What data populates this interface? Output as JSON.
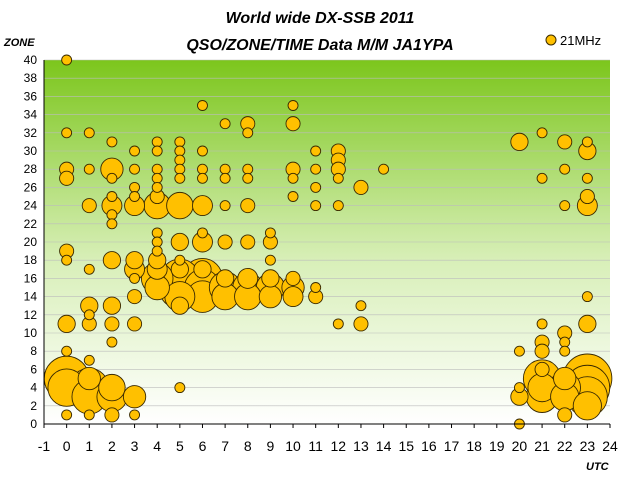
{
  "chart_data": {
    "type": "scatter",
    "title": "World wide DX-SSB 2011",
    "subtitle": "QSO/ZONE/TIME Data M/M JA1YPA",
    "xlabel": "UTC",
    "ylabel": "ZONE",
    "xlim": [
      -1,
      24
    ],
    "ylim": [
      0,
      40
    ],
    "x_ticks": [
      "-1",
      "0",
      "1",
      "2",
      "3",
      "4",
      "5",
      "6",
      "7",
      "8",
      "9",
      "10",
      "11",
      "12",
      "13",
      "14",
      "15",
      "16",
      "17",
      "18",
      "19",
      "20",
      "21",
      "22",
      "23",
      "24"
    ],
    "y_ticks": [
      "0",
      "2",
      "4",
      "6",
      "8",
      "10",
      "12",
      "14",
      "16",
      "18",
      "20",
      "22",
      "24",
      "26",
      "28",
      "30",
      "32",
      "34",
      "36",
      "38",
      "40"
    ],
    "legend_position": "top-right",
    "colors": {
      "marker_fill": "#FFC000",
      "marker_stroke": "#3a2a00",
      "plot_top": "#7cc61c",
      "plot_bottom": "#ffffff"
    },
    "series": [
      {
        "name": "21MHz",
        "points": [
          [
            0,
            40,
            1
          ],
          [
            0,
            32,
            1
          ],
          [
            0,
            28,
            2
          ],
          [
            0,
            27,
            2
          ],
          [
            0,
            19,
            2
          ],
          [
            0,
            18,
            1
          ],
          [
            0,
            11,
            3
          ],
          [
            0,
            8,
            1
          ],
          [
            0,
            5,
            20
          ],
          [
            0,
            4,
            14
          ],
          [
            0,
            1,
            1
          ],
          [
            1,
            32,
            1
          ],
          [
            1,
            28,
            1
          ],
          [
            1,
            24,
            2
          ],
          [
            1,
            17,
            1
          ],
          [
            1,
            13,
            3
          ],
          [
            1,
            12,
            1
          ],
          [
            1,
            11,
            2
          ],
          [
            1,
            7,
            1
          ],
          [
            1,
            5,
            5
          ],
          [
            1,
            4,
            15
          ],
          [
            1,
            3,
            12
          ],
          [
            1,
            1,
            1
          ],
          [
            2,
            31,
            1
          ],
          [
            2,
            28,
            5
          ],
          [
            2,
            27,
            1
          ],
          [
            2,
            25,
            1
          ],
          [
            2,
            24,
            4
          ],
          [
            2,
            23,
            1
          ],
          [
            2,
            22,
            1
          ],
          [
            2,
            18,
            3
          ],
          [
            2,
            13,
            3
          ],
          [
            2,
            11,
            2
          ],
          [
            2,
            9,
            1
          ],
          [
            2,
            4,
            7
          ],
          [
            2,
            3,
            9
          ],
          [
            2,
            1,
            2
          ],
          [
            3,
            30,
            1
          ],
          [
            3,
            28,
            1
          ],
          [
            3,
            26,
            1
          ],
          [
            3,
            25,
            1
          ],
          [
            3,
            24,
            4
          ],
          [
            3,
            18,
            3
          ],
          [
            3,
            17,
            4
          ],
          [
            3,
            16,
            1
          ],
          [
            3,
            14,
            2
          ],
          [
            3,
            11,
            2
          ],
          [
            3,
            3,
            5
          ],
          [
            3,
            1,
            1
          ],
          [
            4,
            31,
            1
          ],
          [
            4,
            30,
            1
          ],
          [
            4,
            28,
            1
          ],
          [
            4,
            27,
            1
          ],
          [
            4,
            26,
            1
          ],
          [
            4,
            25,
            2
          ],
          [
            4,
            24,
            7
          ],
          [
            4,
            21,
            1
          ],
          [
            4,
            20,
            1
          ],
          [
            4,
            19,
            1
          ],
          [
            4,
            18,
            3
          ],
          [
            4,
            17,
            4
          ],
          [
            4,
            16,
            10
          ],
          [
            4,
            15,
            6
          ],
          [
            5,
            31,
            1
          ],
          [
            5,
            30,
            1
          ],
          [
            5,
            29,
            1
          ],
          [
            5,
            28,
            1
          ],
          [
            5,
            27,
            1
          ],
          [
            5,
            24,
            7
          ],
          [
            5,
            20,
            3
          ],
          [
            5,
            18,
            1
          ],
          [
            5,
            17,
            3
          ],
          [
            5,
            16,
            15
          ],
          [
            5,
            15,
            18
          ],
          [
            5,
            14,
            9
          ],
          [
            5,
            13,
            3
          ],
          [
            5,
            4,
            1
          ],
          [
            6,
            35,
            1
          ],
          [
            6,
            30,
            1
          ],
          [
            6,
            28,
            1
          ],
          [
            6,
            27,
            1
          ],
          [
            6,
            24,
            4
          ],
          [
            6,
            21,
            1
          ],
          [
            6,
            20,
            4
          ],
          [
            6,
            17,
            3
          ],
          [
            6,
            16,
            16
          ],
          [
            6,
            15,
            13
          ],
          [
            6,
            14,
            10
          ],
          [
            7,
            33,
            1
          ],
          [
            7,
            28,
            1
          ],
          [
            7,
            27,
            1
          ],
          [
            7,
            24,
            1
          ],
          [
            7,
            20,
            2
          ],
          [
            7,
            16,
            3
          ],
          [
            7,
            15,
            10
          ],
          [
            7,
            14,
            7
          ],
          [
            8,
            33,
            2
          ],
          [
            8,
            32,
            1
          ],
          [
            8,
            28,
            1
          ],
          [
            8,
            27,
            1
          ],
          [
            8,
            24,
            2
          ],
          [
            8,
            20,
            2
          ],
          [
            8,
            16,
            4
          ],
          [
            8,
            15,
            9
          ],
          [
            8,
            14,
            7
          ],
          [
            9,
            21,
            1
          ],
          [
            9,
            20,
            2
          ],
          [
            9,
            18,
            1
          ],
          [
            9,
            16,
            3
          ],
          [
            9,
            15,
            8
          ],
          [
            9,
            14,
            5
          ],
          [
            10,
            35,
            1
          ],
          [
            10,
            33,
            2
          ],
          [
            10,
            28,
            2
          ],
          [
            10,
            27,
            1
          ],
          [
            10,
            25,
            1
          ],
          [
            10,
            16,
            2
          ],
          [
            10,
            15,
            5
          ],
          [
            10,
            14,
            4
          ],
          [
            11,
            30,
            1
          ],
          [
            11,
            28,
            1
          ],
          [
            11,
            26,
            1
          ],
          [
            11,
            24,
            1
          ],
          [
            11,
            15,
            1
          ],
          [
            11,
            14,
            2
          ],
          [
            12,
            30,
            2
          ],
          [
            12,
            29,
            2
          ],
          [
            12,
            28,
            2
          ],
          [
            12,
            27,
            1
          ],
          [
            12,
            24,
            1
          ],
          [
            12,
            11,
            1
          ],
          [
            13,
            26,
            2
          ],
          [
            13,
            13,
            1
          ],
          [
            13,
            11,
            2
          ],
          [
            14,
            28,
            1
          ],
          [
            20,
            31,
            3
          ],
          [
            20,
            8,
            1
          ],
          [
            20,
            4,
            1
          ],
          [
            20,
            3,
            3
          ],
          [
            20,
            0,
            1
          ],
          [
            21,
            32,
            1
          ],
          [
            21,
            27,
            1
          ],
          [
            21,
            11,
            1
          ],
          [
            21,
            9,
            2
          ],
          [
            21,
            8,
            2
          ],
          [
            21,
            6,
            2
          ],
          [
            21,
            5,
            14
          ],
          [
            21,
            4,
            8
          ],
          [
            21,
            3,
            10
          ],
          [
            22,
            31,
            2
          ],
          [
            22,
            28,
            1
          ],
          [
            22,
            24,
            1
          ],
          [
            22,
            10,
            2
          ],
          [
            22,
            9,
            1
          ],
          [
            22,
            8,
            1
          ],
          [
            22,
            5,
            5
          ],
          [
            22,
            4,
            10
          ],
          [
            22,
            3,
            8
          ],
          [
            22,
            1,
            2
          ],
          [
            23,
            31,
            1
          ],
          [
            23,
            30,
            3
          ],
          [
            23,
            27,
            1
          ],
          [
            23,
            25,
            2
          ],
          [
            23,
            24,
            4
          ],
          [
            23,
            14,
            1
          ],
          [
            23,
            11,
            3
          ],
          [
            23,
            5,
            24
          ],
          [
            23,
            4,
            20
          ],
          [
            23,
            3,
            16
          ],
          [
            23,
            2,
            8
          ]
        ]
      }
    ]
  }
}
